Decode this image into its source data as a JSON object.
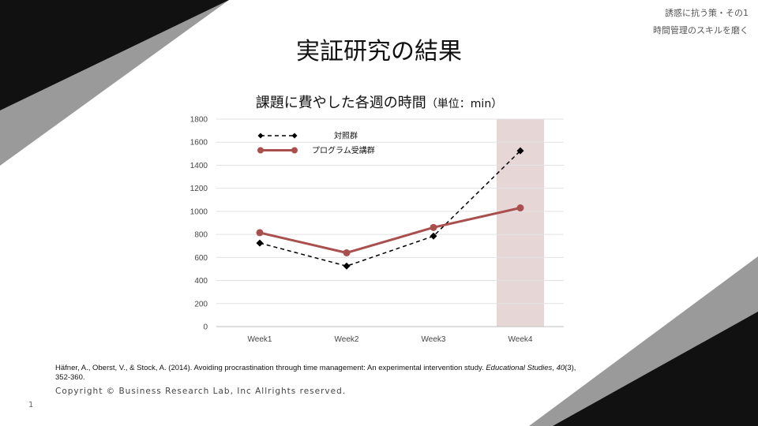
{
  "header": {
    "line1": "誘惑に抗う策・その1",
    "line2": "時間管理のスキルを磨く"
  },
  "slide_title": "実証研究の結果",
  "chart_title": {
    "main": "課題に費やした各週の時間",
    "unit": "（単位：min）"
  },
  "citation": {
    "before": "Häfner, A., Oberst, V., & Stock, A. (2014). Avoiding procrastination through time management: An experimental intervention study. ",
    "journal": "Educational Studies",
    "comma": ", ",
    "volume": "40",
    "after": "(3), 352-360."
  },
  "copyright": "Copyright © Business Research Lab, Inc Allrights reserved.",
  "page_number": "1",
  "colors": {
    "control": "#000000",
    "program": "#A9504E",
    "highlight": "#E7D6D6",
    "decor_dark": "#111111",
    "decor_gray": "#9a9a9a"
  },
  "chart_data": {
    "type": "line",
    "title": "課題に費やした各週の時間（単位：min）",
    "categories": [
      "Week1",
      "Week2",
      "Week3",
      "Week4"
    ],
    "series": [
      {
        "name": "対照群",
        "values": [
          725,
          525,
          785,
          1525
        ],
        "style": "dashed",
        "marker": "diamond",
        "color": "#000000"
      },
      {
        "name": "プログラム受講群",
        "values": [
          815,
          640,
          860,
          1030
        ],
        "style": "solid",
        "marker": "circle",
        "color": "#A9504E"
      }
    ],
    "y_ticks": [
      "0",
      "200",
      "400",
      "600",
      "800",
      "1000",
      "1200",
      "1400",
      "1600",
      "1800"
    ],
    "ylim": [
      0,
      1800
    ],
    "highlight_category": "Week4",
    "grid": true,
    "legend_position": "top-left"
  }
}
